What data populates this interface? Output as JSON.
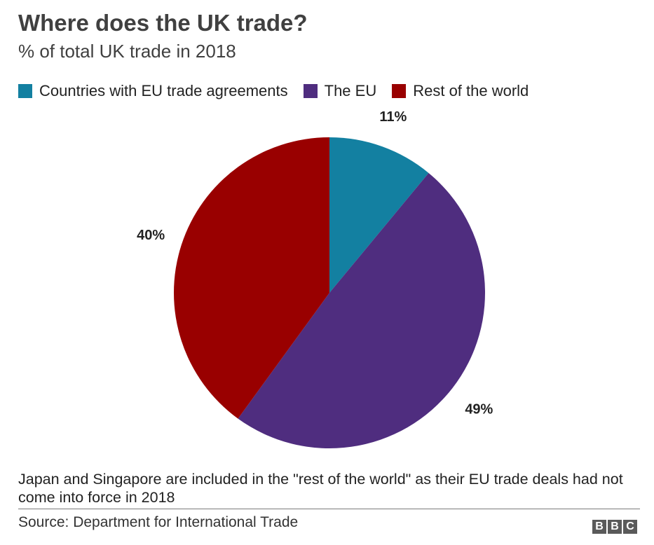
{
  "title": "Where does the UK trade?",
  "subtitle": "% of total UK trade in 2018",
  "legend": [
    {
      "label": "Countries with EU trade agreements",
      "color": "#1380A1"
    },
    {
      "label": "The EU",
      "color": "#4F2D7F"
    },
    {
      "label": "Rest of the world",
      "color": "#990000"
    }
  ],
  "chart_data": {
    "type": "pie",
    "title": "Where does the UK trade?",
    "subtitle": "% of total UK trade in 2018",
    "slices": [
      {
        "label": "Countries with EU trade agreements",
        "value": 11,
        "display": "11%",
        "color": "#1380A1"
      },
      {
        "label": "The EU",
        "value": 49,
        "display": "49%",
        "color": "#4F2D7F"
      },
      {
        "label": "Rest of the world",
        "value": 40,
        "display": "40%",
        "color": "#990000"
      }
    ],
    "legend_position": "top-left"
  },
  "note": "Japan and Singapore are included in the \"rest of the world\" as their EU trade deals had not come into force in 2018",
  "source": "Source: Department for International Trade",
  "logo": [
    "B",
    "B",
    "C"
  ]
}
